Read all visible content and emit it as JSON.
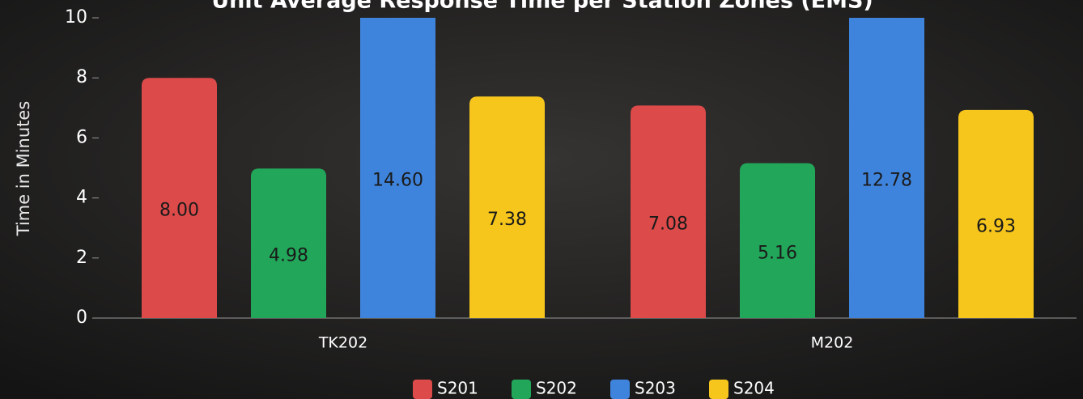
{
  "chart_data": {
    "type": "bar",
    "title": "Unit Average Response Time per Station Zones (EMS)",
    "y_label": "Time in Minutes",
    "categories": [
      "TK202",
      "M202"
    ],
    "series": [
      {
        "name": "S201",
        "color": "#dc4a4a",
        "values": [
          8.0,
          7.08
        ],
        "value_labels": [
          "8.00",
          "7.08"
        ]
      },
      {
        "name": "S202",
        "color": "#22a75a",
        "values": [
          4.98,
          5.16
        ],
        "value_labels": [
          "4.98",
          "5.16"
        ]
      },
      {
        "name": "S203",
        "color": "#3f84dc",
        "values": [
          14.6,
          12.78
        ],
        "value_labels": [
          "14.60",
          "12.78"
        ]
      },
      {
        "name": "S204",
        "color": "#f6c61c",
        "values": [
          7.38,
          6.93
        ],
        "value_labels": [
          "7.38",
          "6.93"
        ]
      }
    ],
    "ylim": [
      0,
      10
    ],
    "yticks": [
      0,
      2,
      4,
      6,
      8,
      10
    ],
    "legend": "bottom"
  }
}
